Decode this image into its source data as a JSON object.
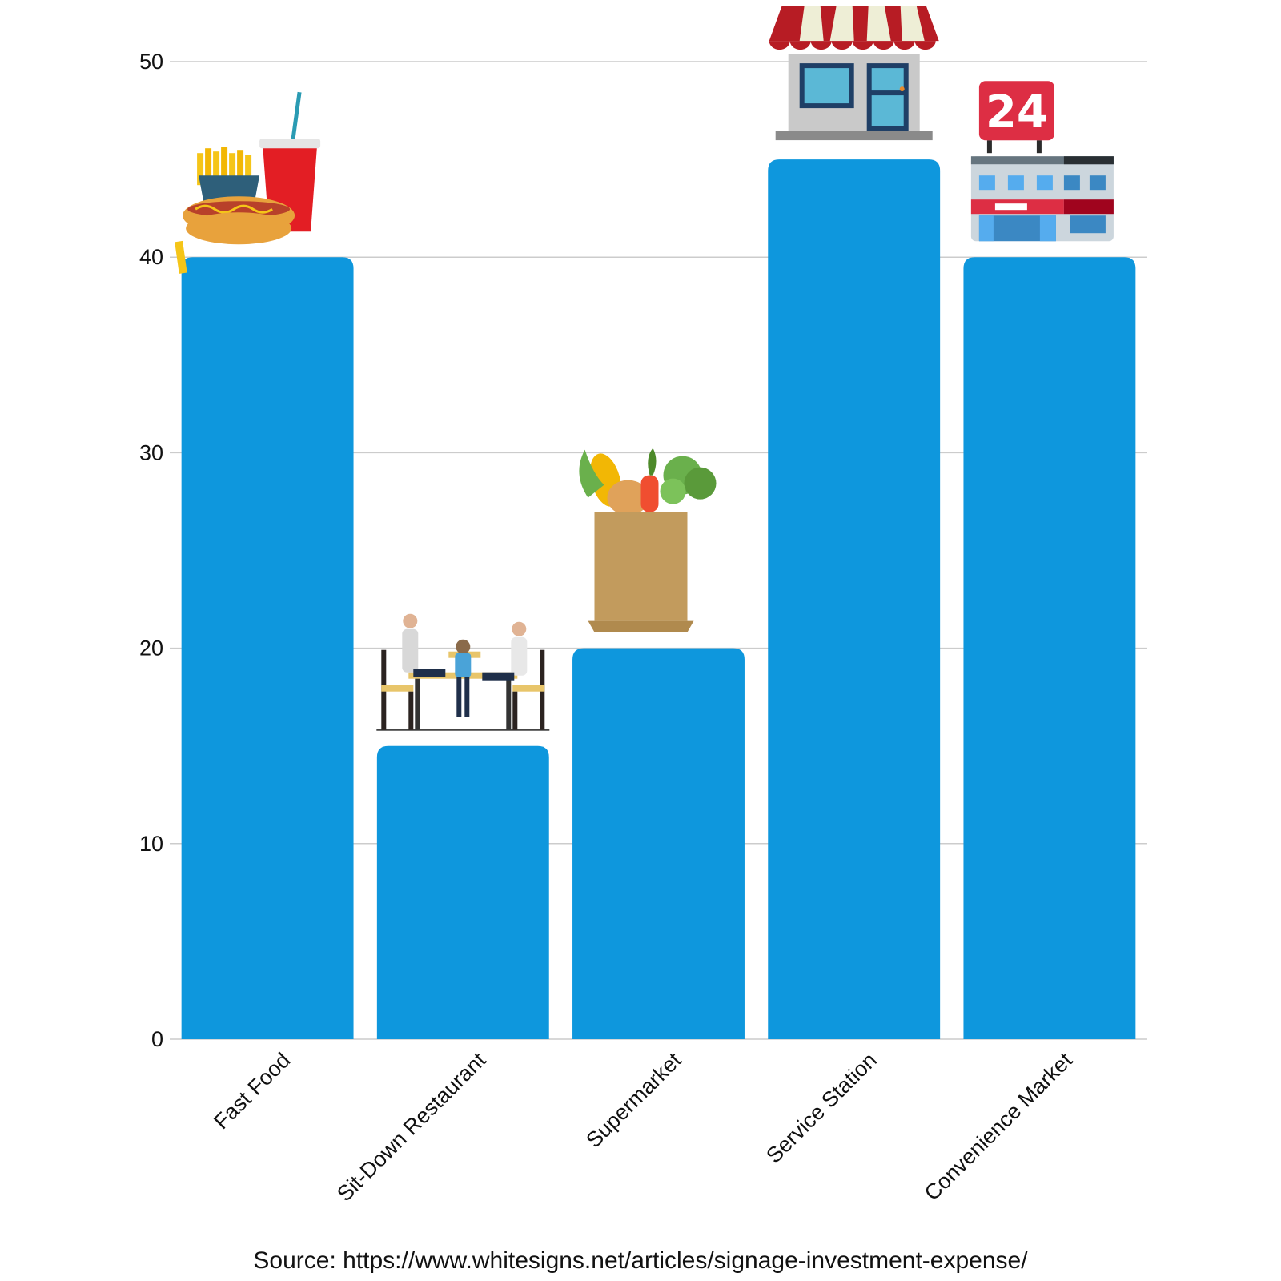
{
  "chart_data": {
    "type": "bar",
    "categories": [
      "Fast Food",
      "Sit-Down Restaurant",
      "Supermarket",
      "Service Station",
      "Convenience Market"
    ],
    "values": [
      40,
      15,
      20,
      45,
      40
    ],
    "ylim": [
      0,
      50
    ],
    "yticks": [
      0,
      10,
      20,
      30,
      40,
      50
    ],
    "grid": true,
    "bar_color": "#0e97dd",
    "grid_color": "#cccccc",
    "category_icons": [
      "fast-food-icon",
      "family-dining-icon",
      "grocery-bag-icon",
      "storefront-icon",
      "24-hour-store-icon"
    ],
    "icon_text": {
      "convenience": "24"
    }
  },
  "source": "Source: https://www.whitesigns.net/articles/signage-investment-expense/"
}
